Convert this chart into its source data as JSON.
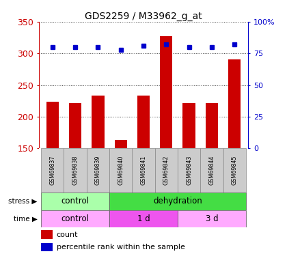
{
  "title": "GDS2259 / M33962_g_at",
  "samples": [
    "GSM69837",
    "GSM69838",
    "GSM69839",
    "GSM69840",
    "GSM69841",
    "GSM69842",
    "GSM69843",
    "GSM69844",
    "GSM69845"
  ],
  "counts": [
    224,
    221,
    233,
    163,
    233,
    327,
    221,
    222,
    290
  ],
  "percentiles": [
    80,
    80,
    80,
    78,
    81,
    82,
    80,
    80,
    82
  ],
  "ylim": [
    150,
    350
  ],
  "yticks": [
    150,
    200,
    250,
    300,
    350
  ],
  "percentile_ylim": [
    0,
    100
  ],
  "percentile_yticks": [
    0,
    25,
    50,
    75,
    100
  ],
  "bar_color": "#cc0000",
  "dot_color": "#0000cc",
  "bar_width": 0.55,
  "stress_groups": [
    {
      "label": "control",
      "start": 0,
      "end": 3,
      "color": "#aaffaa"
    },
    {
      "label": "dehydration",
      "start": 3,
      "end": 9,
      "color": "#44dd44"
    }
  ],
  "time_groups": [
    {
      "label": "control",
      "start": 0,
      "end": 3,
      "color": "#ffaaff"
    },
    {
      "label": "1 d",
      "start": 3,
      "end": 6,
      "color": "#ee55ee"
    },
    {
      "label": "3 d",
      "start": 6,
      "end": 9,
      "color": "#ffaaff"
    }
  ],
  "tick_label_color": "#cc0000",
  "right_axis_color": "#0000cc",
  "sample_bg_color": "#cccccc",
  "sample_edge_color": "#888888"
}
